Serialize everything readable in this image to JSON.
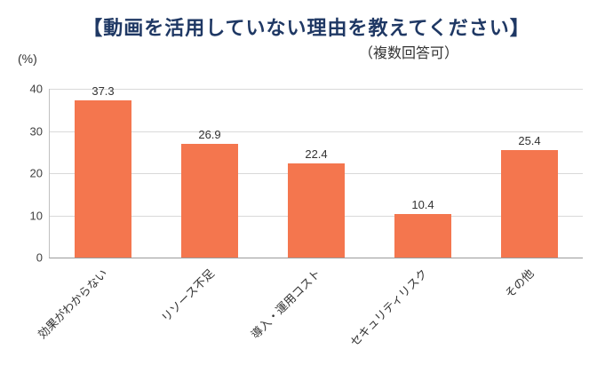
{
  "header": {
    "title": "【動画を活用していない理由を教えてください】",
    "subtitle": "（複数回答可）",
    "y_unit_label": "(%)"
  },
  "chart_data": {
    "type": "bar",
    "title": "【動画を活用していない理由を教えてください】",
    "subtitle": "（複数回答可）",
    "categories": [
      "効果がわからない",
      "リソース不足",
      "導入・運用コスト",
      "セキュリティリスク",
      "その他"
    ],
    "values": [
      37.3,
      26.9,
      22.4,
      10.4,
      25.4
    ],
    "value_labels": [
      "37.3",
      "26.9",
      "22.4",
      "10.4",
      "25.4"
    ],
    "xlabel": "",
    "ylabel": "(%)",
    "ylim": [
      0,
      40
    ],
    "yticks": [
      0,
      10,
      20,
      30,
      40
    ],
    "grid": true,
    "legend_position": "none",
    "bar_color": "#f4764e",
    "title_color": "#1f3864",
    "gridline_color": "#d9d9d9"
  }
}
